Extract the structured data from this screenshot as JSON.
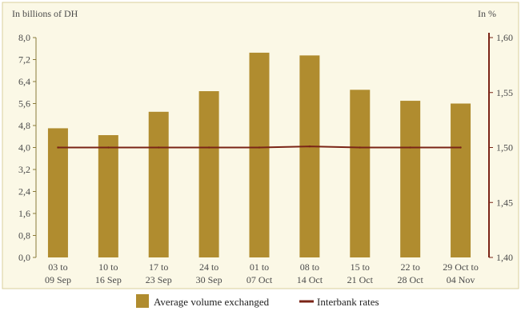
{
  "chart_data": {
    "type": "bar",
    "left_unit": "In billions of DH",
    "right_unit": "In %",
    "categories": [
      [
        "03 to",
        "09 Sep"
      ],
      [
        "10 to",
        "16 Sep"
      ],
      [
        "17 to",
        "23 Sep"
      ],
      [
        "24 to",
        "30 Sep"
      ],
      [
        "01 to",
        "07 Oct"
      ],
      [
        "08 to",
        "14 Oct"
      ],
      [
        "15 to",
        "21 Oct"
      ],
      [
        "22 to",
        "28 Oct"
      ],
      [
        "29 Oct to",
        "04 Nov"
      ]
    ],
    "series": [
      {
        "name": "Average volume exchanged",
        "type": "bar",
        "axis": "left",
        "color": "#b08c2f",
        "values": [
          4.7,
          4.45,
          5.3,
          6.05,
          7.45,
          7.35,
          6.1,
          5.7,
          5.6
        ]
      },
      {
        "name": "Interbank rates",
        "type": "line",
        "axis": "right",
        "color": "#7a2416",
        "values": [
          1.5,
          1.5,
          1.5,
          1.5,
          1.5,
          1.501,
          1.5,
          1.5,
          1.5
        ]
      }
    ],
    "left_axis": {
      "min": 0,
      "max": 8.0,
      "step": 0.8,
      "tick_labels": [
        "0,0",
        "0,8",
        "1,6",
        "2,4",
        "3,2",
        "4,0",
        "4,8",
        "5,6",
        "6,4",
        "7,2",
        "8,0"
      ]
    },
    "right_axis": {
      "min": 1.4,
      "max": 1.6,
      "step": 0.05,
      "tick_labels": [
        "1,40",
        "1,45",
        "1,50",
        "1,55",
        "1,60"
      ]
    },
    "grid": false,
    "legend_position": "bottom"
  }
}
